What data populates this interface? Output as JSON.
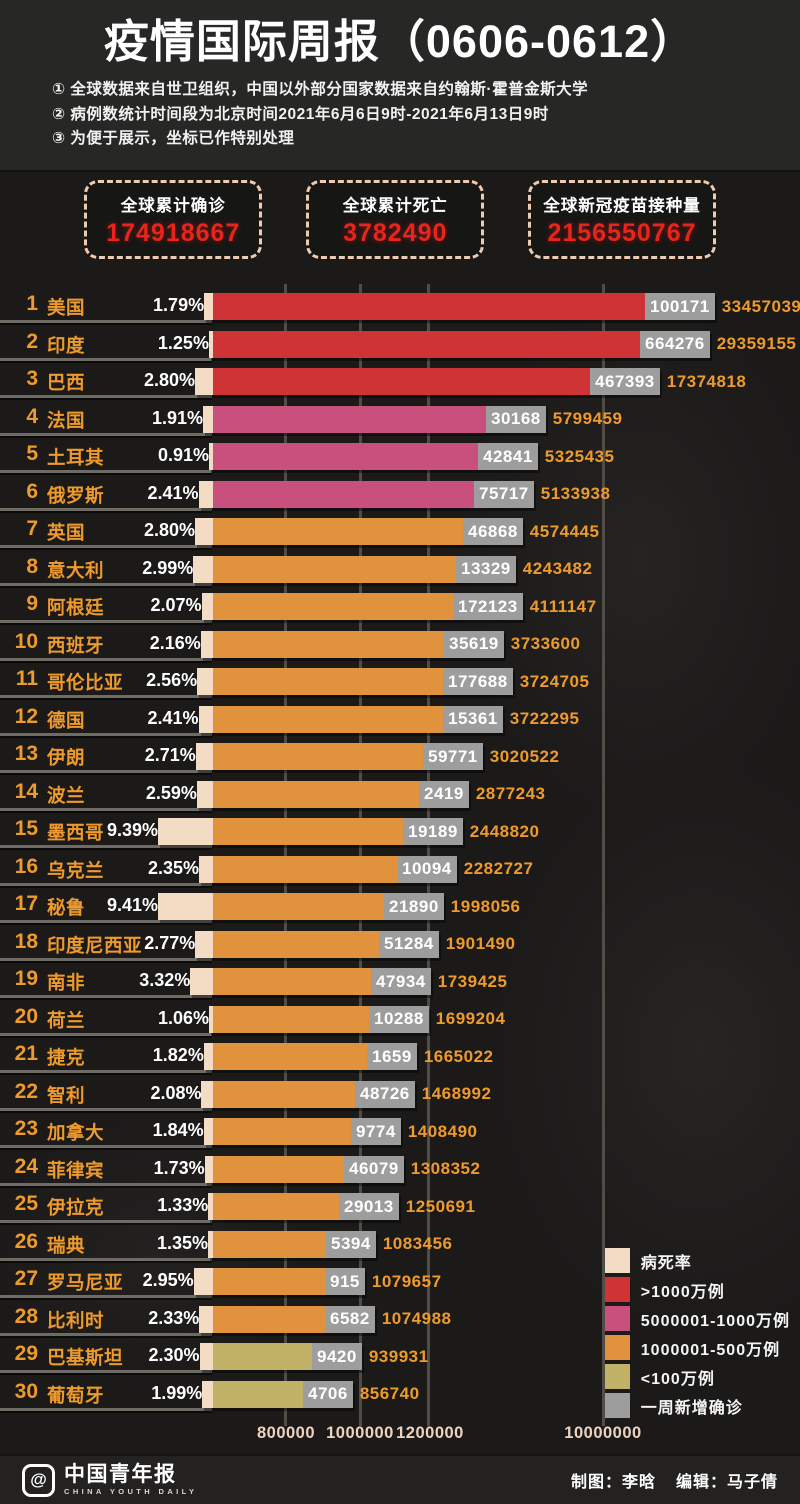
{
  "header": {
    "title": "疫情国际周报（0606-0612）",
    "notes": [
      "① 全球数据来自世卫组织，中国以外部分国家数据来自约翰斯·霍普金斯大学",
      "② 病例数统计时间段为北京时间2021年6月6日9时-2021年6月13日9时",
      "③ 为便于展示，坐标已作特别处理"
    ]
  },
  "stats": [
    {
      "label": "全球累计确诊",
      "value": "174918667"
    },
    {
      "label": "全球累计死亡",
      "value": "3782490"
    },
    {
      "label": "全球新冠疫苗接种量",
      "value": "2156550767"
    }
  ],
  "chart_data": {
    "type": "bar",
    "orientation": "horizontal",
    "title": "疫情国际周报（0606-0612）",
    "x_axis_ticks": [
      "800000",
      "1000000",
      "1200000",
      "10000000"
    ],
    "axis_note": "坐标已作特别处理",
    "legend": [
      {
        "key": "fatality",
        "label": "病死率",
        "color": "#f4dcc4"
      },
      {
        "key": "gt10m",
        "label": ">1000万例",
        "color": "#d03336"
      },
      {
        "key": "m5to10",
        "label": "5000001-1000万例",
        "color": "#c94f7d"
      },
      {
        "key": "m1to5",
        "label": "1000001-500万例",
        "color": "#e0923c"
      },
      {
        "key": "lt1m",
        "label": "<100万例",
        "color": "#c1b268"
      },
      {
        "key": "weekly",
        "label": "一周新增确诊",
        "color": "#9d9d9d"
      }
    ],
    "rows": [
      {
        "rank": 1,
        "country": "美国",
        "fatality_rate": "1.79%",
        "weekly_new": 100171,
        "cumulative": 33457039,
        "category": "gt10m"
      },
      {
        "rank": 2,
        "country": "印度",
        "fatality_rate": "1.25%",
        "weekly_new": 664276,
        "cumulative": 29359155,
        "category": "gt10m"
      },
      {
        "rank": 3,
        "country": "巴西",
        "fatality_rate": "2.80%",
        "weekly_new": 467393,
        "cumulative": 17374818,
        "category": "gt10m"
      },
      {
        "rank": 4,
        "country": "法国",
        "fatality_rate": "1.91%",
        "weekly_new": 30168,
        "cumulative": 5799459,
        "category": "m5to10"
      },
      {
        "rank": 5,
        "country": "土耳其",
        "fatality_rate": "0.91%",
        "weekly_new": 42841,
        "cumulative": 5325435,
        "category": "m5to10"
      },
      {
        "rank": 6,
        "country": "俄罗斯",
        "fatality_rate": "2.41%",
        "weekly_new": 75717,
        "cumulative": 5133938,
        "category": "m5to10"
      },
      {
        "rank": 7,
        "country": "英国",
        "fatality_rate": "2.80%",
        "weekly_new": 46868,
        "cumulative": 4574445,
        "category": "m1to5"
      },
      {
        "rank": 8,
        "country": "意大利",
        "fatality_rate": "2.99%",
        "weekly_new": 13329,
        "cumulative": 4243482,
        "category": "m1to5"
      },
      {
        "rank": 9,
        "country": "阿根廷",
        "fatality_rate": "2.07%",
        "weekly_new": 172123,
        "cumulative": 4111147,
        "category": "m1to5"
      },
      {
        "rank": 10,
        "country": "西班牙",
        "fatality_rate": "2.16%",
        "weekly_new": 35619,
        "cumulative": 3733600,
        "category": "m1to5"
      },
      {
        "rank": 11,
        "country": "哥伦比亚",
        "fatality_rate": "2.56%",
        "weekly_new": 177688,
        "cumulative": 3724705,
        "category": "m1to5"
      },
      {
        "rank": 12,
        "country": "德国",
        "fatality_rate": "2.41%",
        "weekly_new": 15361,
        "cumulative": 3722295,
        "category": "m1to5"
      },
      {
        "rank": 13,
        "country": "伊朗",
        "fatality_rate": "2.71%",
        "weekly_new": 59771,
        "cumulative": 3020522,
        "category": "m1to5"
      },
      {
        "rank": 14,
        "country": "波兰",
        "fatality_rate": "2.59%",
        "weekly_new": 2419,
        "cumulative": 2877243,
        "category": "m1to5"
      },
      {
        "rank": 15,
        "country": "墨西哥",
        "fatality_rate": "9.39%",
        "weekly_new": 19189,
        "cumulative": 2448820,
        "category": "m1to5"
      },
      {
        "rank": 16,
        "country": "乌克兰",
        "fatality_rate": "2.35%",
        "weekly_new": 10094,
        "cumulative": 2282727,
        "category": "m1to5"
      },
      {
        "rank": 17,
        "country": "秘鲁",
        "fatality_rate": "9.41%",
        "weekly_new": 21890,
        "cumulative": 1998056,
        "category": "m1to5"
      },
      {
        "rank": 18,
        "country": "印度尼西亚",
        "fatality_rate": "2.77%",
        "weekly_new": 51284,
        "cumulative": 1901490,
        "category": "m1to5"
      },
      {
        "rank": 19,
        "country": "南非",
        "fatality_rate": "3.32%",
        "weekly_new": 47934,
        "cumulative": 1739425,
        "category": "m1to5"
      },
      {
        "rank": 20,
        "country": "荷兰",
        "fatality_rate": "1.06%",
        "weekly_new": 10288,
        "cumulative": 1699204,
        "category": "m1to5"
      },
      {
        "rank": 21,
        "country": "捷克",
        "fatality_rate": "1.82%",
        "weekly_new": 1659,
        "cumulative": 1665022,
        "category": "m1to5"
      },
      {
        "rank": 22,
        "country": "智利",
        "fatality_rate": "2.08%",
        "weekly_new": 48726,
        "cumulative": 1468992,
        "category": "m1to5"
      },
      {
        "rank": 23,
        "country": "加拿大",
        "fatality_rate": "1.84%",
        "weekly_new": 9774,
        "cumulative": 1408490,
        "category": "m1to5"
      },
      {
        "rank": 24,
        "country": "菲律宾",
        "fatality_rate": "1.73%",
        "weekly_new": 46079,
        "cumulative": 1308352,
        "category": "m1to5"
      },
      {
        "rank": 25,
        "country": "伊拉克",
        "fatality_rate": "1.33%",
        "weekly_new": 29013,
        "cumulative": 1250691,
        "category": "m1to5"
      },
      {
        "rank": 26,
        "country": "瑞典",
        "fatality_rate": "1.35%",
        "weekly_new": 5394,
        "cumulative": 1083456,
        "category": "m1to5"
      },
      {
        "rank": 27,
        "country": "罗马尼亚",
        "fatality_rate": "2.95%",
        "weekly_new": 915,
        "cumulative": 1079657,
        "category": "m1to5"
      },
      {
        "rank": 28,
        "country": "比利时",
        "fatality_rate": "2.33%",
        "weekly_new": 6582,
        "cumulative": 1074988,
        "category": "m1to5"
      },
      {
        "rank": 29,
        "country": "巴基斯坦",
        "fatality_rate": "2.30%",
        "weekly_new": 9420,
        "cumulative": 939931,
        "category": "lt1m"
      },
      {
        "rank": 30,
        "country": "葡萄牙",
        "fatality_rate": "1.99%",
        "weekly_new": 4706,
        "cumulative": 856740,
        "category": "lt1m"
      }
    ]
  },
  "footer": {
    "logo_at": "@",
    "logo_cn": "中国青年报",
    "logo_en": "CHINA YOUTH DAILY",
    "credit_maker": "制图：李晗",
    "credit_editor": "编辑：马子倩"
  }
}
